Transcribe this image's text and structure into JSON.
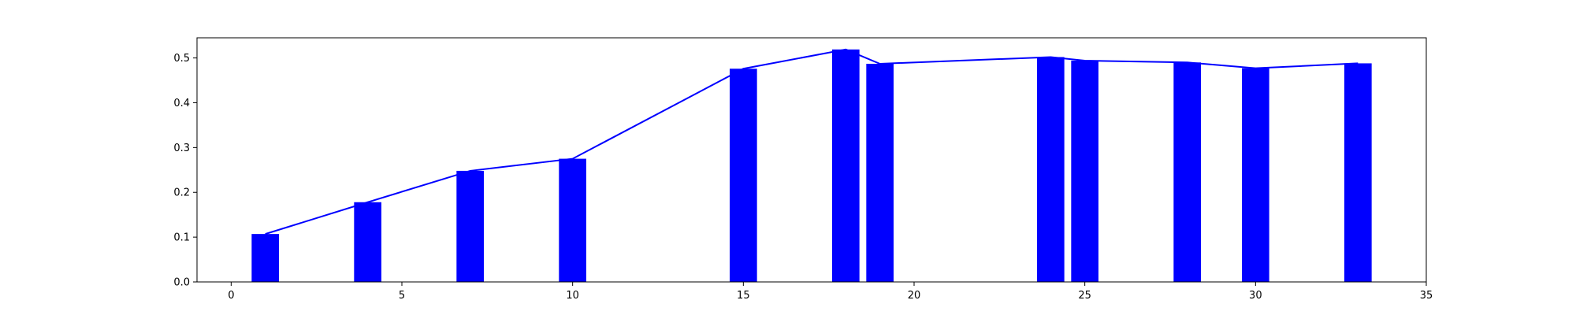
{
  "chart_data": {
    "type": "bar",
    "overlay_line": true,
    "title": "",
    "xlabel": "",
    "ylabel": "",
    "xlim": [
      -1,
      35
    ],
    "ylim": [
      0,
      0.545
    ],
    "xticks": [
      0,
      5,
      10,
      15,
      20,
      25,
      30,
      35
    ],
    "yticks": [
      0.0,
      0.1,
      0.2,
      0.3,
      0.4,
      0.5
    ],
    "xtick_labels": [
      "0",
      "5",
      "10",
      "15",
      "20",
      "25",
      "30",
      "35"
    ],
    "ytick_labels": [
      "0.0",
      "0.1",
      "0.2",
      "0.3",
      "0.4",
      "0.5"
    ],
    "grid": false,
    "colors": {
      "bars": "#0000ff",
      "line": "#0000ff",
      "axes": "#000000"
    },
    "x": [
      1,
      4,
      7,
      10,
      15,
      18,
      19,
      24,
      25,
      28,
      30,
      33
    ],
    "values": [
      0.107,
      0.178,
      0.248,
      0.275,
      0.476,
      0.519,
      0.487,
      0.502,
      0.494,
      0.49,
      0.477,
      0.488
    ]
  }
}
